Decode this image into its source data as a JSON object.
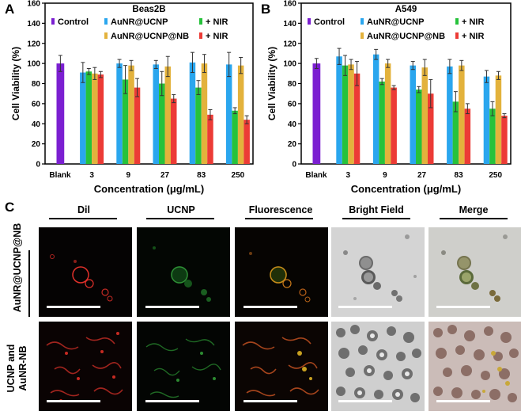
{
  "panels": {
    "A": "A",
    "B": "B",
    "C": "C"
  },
  "legend": {
    "control": "Control",
    "aunr_ucnp": "AuNR@UCNP",
    "aunr_ucnp_nb": "AuNR@UCNP@NB",
    "nir_1": "+ NIR",
    "nir_2": "+ NIR"
  },
  "colors": {
    "control": "#7b1fd1",
    "aunr_ucnp": "#2aa6ee",
    "aunr_ucnp_nir": "#26c23b",
    "aunr_ucnp_nb": "#e3b23c",
    "aunr_ucnp_nb_nir": "#ec3b36"
  },
  "chart_data": [
    {
      "type": "bar",
      "title": "Beas2B",
      "xlabel": "Concentration (μg/mL)",
      "ylabel": "Cell Viability (%)",
      "ylim": [
        0,
        160
      ],
      "yticks": [
        0,
        20,
        40,
        60,
        80,
        100,
        120,
        140,
        160
      ],
      "categories": [
        "Blank",
        "3",
        "9",
        "27",
        "83",
        "250"
      ],
      "series": [
        {
          "name": "Control",
          "values": [
            100,
            null,
            null,
            null,
            null,
            null
          ],
          "errors": [
            8,
            null,
            null,
            null,
            null,
            null
          ]
        },
        {
          "name": "AuNR@UCNP",
          "values": [
            null,
            91,
            100,
            99,
            101,
            99
          ],
          "errors": [
            null,
            10,
            4,
            4,
            10,
            12
          ]
        },
        {
          "name": "AuNR@UCNP + NIR",
          "values": [
            null,
            92,
            84,
            80,
            76,
            53
          ],
          "errors": [
            null,
            3,
            14,
            12,
            7,
            3
          ]
        },
        {
          "name": "AuNR@UCNP@NB",
          "values": [
            null,
            90,
            98,
            97,
            100,
            98
          ],
          "errors": [
            null,
            6,
            5,
            10,
            9,
            8
          ]
        },
        {
          "name": "AuNR@UCNP@NB + NIR",
          "values": [
            null,
            89,
            76,
            65,
            49,
            44
          ],
          "errors": [
            null,
            3,
            9,
            4,
            5,
            4
          ]
        }
      ]
    },
    {
      "type": "bar",
      "title": "A549",
      "xlabel": "Concentration (μg/mL)",
      "ylabel": "Cell Viability (%)",
      "ylim": [
        0,
        160
      ],
      "yticks": [
        0,
        20,
        40,
        60,
        80,
        100,
        120,
        140,
        160
      ],
      "categories": [
        "Blank",
        "3",
        "9",
        "27",
        "83",
        "250"
      ],
      "series": [
        {
          "name": "Control",
          "values": [
            100,
            null,
            null,
            null,
            null,
            null
          ],
          "errors": [
            5,
            null,
            null,
            null,
            null,
            null
          ]
        },
        {
          "name": "AuNR@UCNP",
          "values": [
            null,
            107,
            109,
            98,
            97,
            87
          ],
          "errors": [
            null,
            8,
            5,
            4,
            7,
            6
          ]
        },
        {
          "name": "AuNR@UCNP + NIR",
          "values": [
            null,
            98,
            82,
            74,
            62,
            55
          ],
          "errors": [
            null,
            10,
            3,
            3,
            10,
            7
          ]
        },
        {
          "name": "AuNR@UCNP@NB",
          "values": [
            null,
            99,
            100,
            96,
            98,
            88
          ],
          "errors": [
            null,
            5,
            4,
            8,
            5,
            4
          ]
        },
        {
          "name": "AuNR@UCNP@NB + NIR",
          "values": [
            null,
            90,
            76,
            70,
            55,
            48
          ],
          "errors": [
            null,
            12,
            2,
            14,
            5,
            2
          ]
        }
      ]
    }
  ],
  "microscopy": {
    "columns": [
      "Dil",
      "UCNP",
      "Fluorescence",
      "Bright Field",
      "Merge"
    ],
    "rows": [
      {
        "label": "AuNR@UCNP@NB"
      },
      {
        "label_line1": "UCNP and",
        "label_line2": "AuNR-NB"
      }
    ]
  }
}
